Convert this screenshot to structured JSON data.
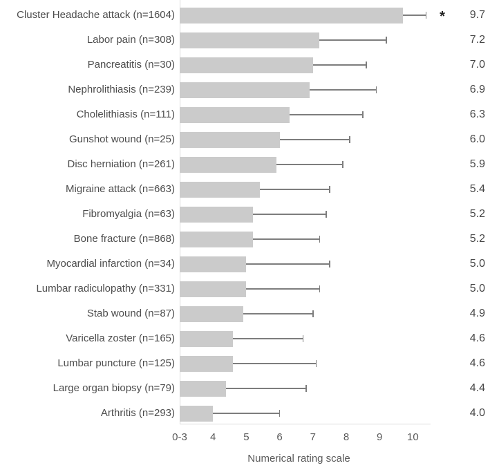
{
  "chart_data": {
    "type": "bar",
    "orientation": "horizontal",
    "title": "",
    "xlabel": "Numerical rating scale",
    "ylabel": "",
    "grid": false,
    "legend": false,
    "x_axis": {
      "tick_labels": [
        "0-3",
        "4",
        "5",
        "6",
        "7",
        "8",
        "9",
        "10"
      ],
      "tick_values": [
        3,
        4,
        5,
        6,
        7,
        8,
        9,
        10
      ],
      "min": 3,
      "max": 10.5
    },
    "rows": [
      {
        "label": "Cluster Headache attack (n=1604)",
        "value": 9.7,
        "error_upper": 10.4,
        "display_value": "9.7",
        "significance": "*"
      },
      {
        "label": "Labor pain (n=308)",
        "value": 7.2,
        "error_upper": 9.2,
        "display_value": "7.2",
        "significance": ""
      },
      {
        "label": "Pancreatitis (n=30)",
        "value": 7.0,
        "error_upper": 8.6,
        "display_value": "7.0",
        "significance": ""
      },
      {
        "label": "Nephrolithiasis (n=239)",
        "value": 6.9,
        "error_upper": 8.9,
        "display_value": "6.9",
        "significance": ""
      },
      {
        "label": "Cholelithiasis (n=111)",
        "value": 6.3,
        "error_upper": 8.5,
        "display_value": "6.3",
        "significance": ""
      },
      {
        "label": "Gunshot wound (n=25)",
        "value": 6.0,
        "error_upper": 8.1,
        "display_value": "6.0",
        "significance": ""
      },
      {
        "label": "Disc herniation (n=261)",
        "value": 5.9,
        "error_upper": 7.9,
        "display_value": "5.9",
        "significance": ""
      },
      {
        "label": "Migraine attack (n=663)",
        "value": 5.4,
        "error_upper": 7.5,
        "display_value": "5.4",
        "significance": ""
      },
      {
        "label": "Fibromyalgia (n=63)",
        "value": 5.2,
        "error_upper": 7.4,
        "display_value": "5.2",
        "significance": ""
      },
      {
        "label": "Bone fracture (n=868)",
        "value": 5.2,
        "error_upper": 7.2,
        "display_value": "5.2",
        "significance": ""
      },
      {
        "label": "Myocardial infarction (n=34)",
        "value": 5.0,
        "error_upper": 7.5,
        "display_value": "5.0",
        "significance": ""
      },
      {
        "label": "Lumbar radiculopathy (n=331)",
        "value": 5.0,
        "error_upper": 7.2,
        "display_value": "5.0",
        "significance": ""
      },
      {
        "label": "Stab wound (n=87)",
        "value": 4.9,
        "error_upper": 7.0,
        "display_value": "4.9",
        "significance": ""
      },
      {
        "label": "Varicella zoster (n=165)",
        "value": 4.6,
        "error_upper": 6.7,
        "display_value": "4.6",
        "significance": ""
      },
      {
        "label": "Lumbar puncture (n=125)",
        "value": 4.6,
        "error_upper": 7.1,
        "display_value": "4.6",
        "significance": ""
      },
      {
        "label": "Large organ biopsy (n=79)",
        "value": 4.4,
        "error_upper": 6.8,
        "display_value": "4.4",
        "significance": ""
      },
      {
        "label": "Arthritis (n=293)",
        "value": 4.0,
        "error_upper": 6.0,
        "display_value": "4.0",
        "significance": ""
      }
    ],
    "style": {
      "bar_color": "#cbcbcb",
      "error_color": "#7d7d7d",
      "axis_color": "#d9d9d9",
      "label_color": "#4d4d4d",
      "tick_color": "#595959",
      "significance_color": "#222222"
    }
  }
}
